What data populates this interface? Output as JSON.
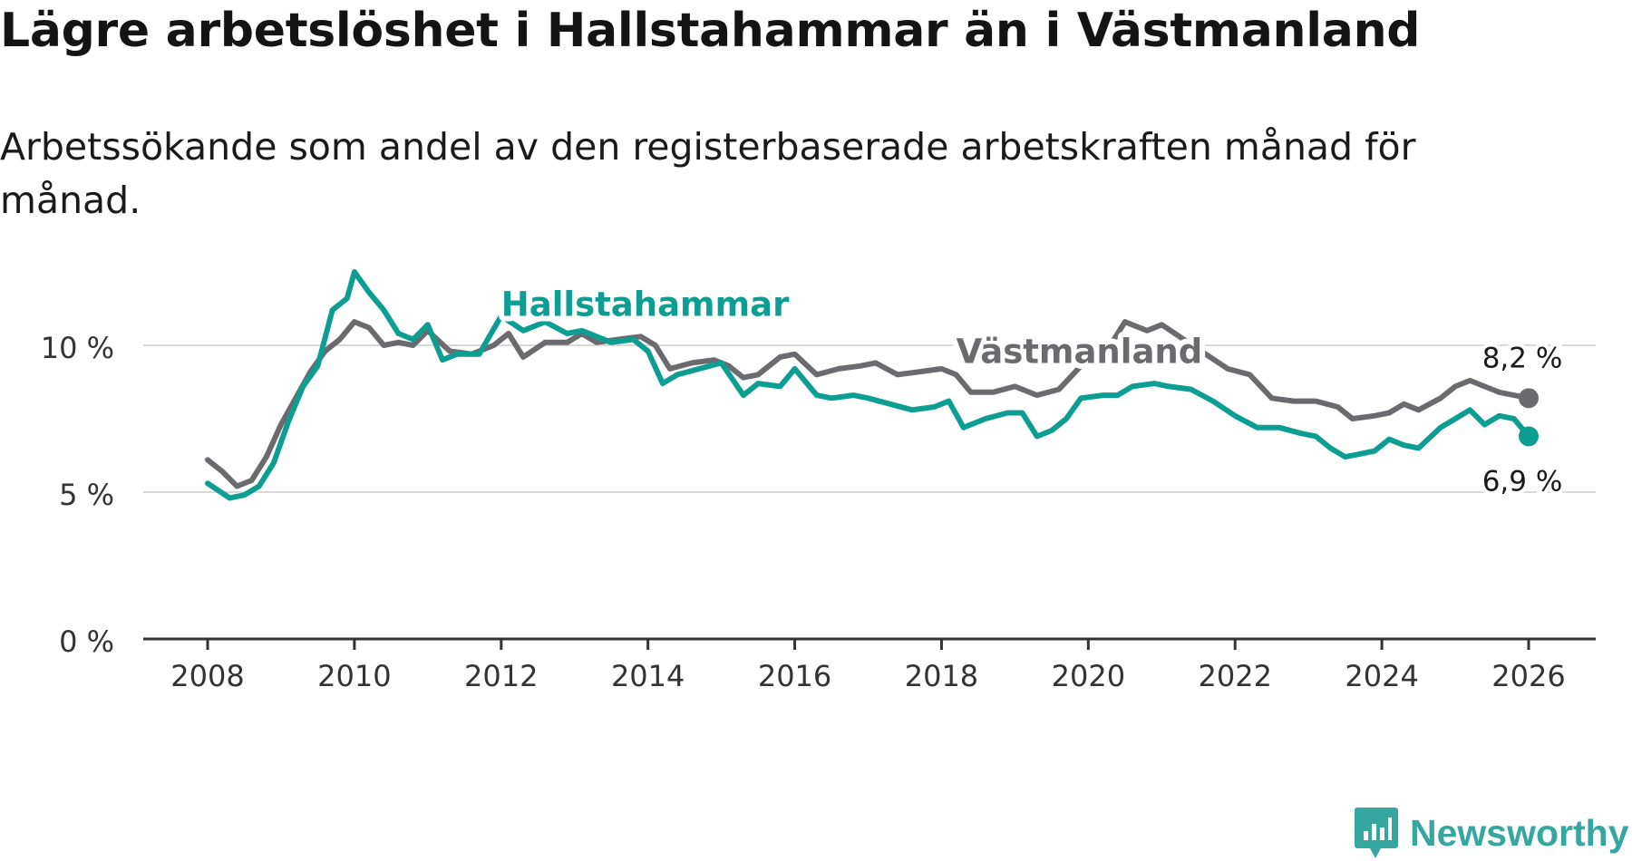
{
  "title": "Lägre arbetslöshet i Hallstahammar än i Västmanland",
  "subtitle": "Arbetssökande som andel av den registerbaserade arbetskraften månad för månad.",
  "brand": {
    "name": "Newsworthy",
    "icon": "newsworthy-logo-icon",
    "color": "#35a7a0"
  },
  "chart_data": {
    "type": "line",
    "title": "Lägre arbetslöshet i Hallstahammar än i Västmanland",
    "subtitle": "Arbetssökande som andel av den registerbaserade arbetskraften månad för månad.",
    "xlabel": "",
    "ylabel": "",
    "xlim": [
      2007.2,
      2026.9
    ],
    "ylim": [
      0,
      12.5
    ],
    "x_ticks": [
      2008,
      2010,
      2012,
      2014,
      2016,
      2018,
      2020,
      2022,
      2024,
      2026
    ],
    "x_tick_labels": [
      "2008",
      "2010",
      "2012",
      "2014",
      "2016",
      "2018",
      "2020",
      "2022",
      "2024",
      "2026"
    ],
    "y_ticks": [
      0,
      5,
      10
    ],
    "y_tick_labels": [
      "0 %",
      "5 %",
      "10 %"
    ],
    "grid": "horizontal",
    "series": [
      {
        "name": "Hallstahammar",
        "color": "#0d9e93",
        "end_label": "6,9 %",
        "x": [
          2008.0,
          2008.3,
          2008.5,
          2008.7,
          2008.9,
          2009.1,
          2009.3,
          2009.5,
          2009.7,
          2009.9,
          2010.0,
          2010.2,
          2010.4,
          2010.6,
          2010.8,
          2011.0,
          2011.2,
          2011.4,
          2011.7,
          2012.0,
          2012.3,
          2012.6,
          2012.9,
          2013.1,
          2013.3,
          2013.5,
          2013.8,
          2014.0,
          2014.2,
          2014.4,
          2014.7,
          2015.0,
          2015.3,
          2015.5,
          2015.8,
          2016.0,
          2016.3,
          2016.5,
          2016.8,
          2017.0,
          2017.3,
          2017.6,
          2017.9,
          2018.1,
          2018.3,
          2018.6,
          2018.9,
          2019.1,
          2019.3,
          2019.5,
          2019.7,
          2019.9,
          2020.2,
          2020.4,
          2020.6,
          2020.9,
          2021.1,
          2021.4,
          2021.7,
          2022.0,
          2022.3,
          2022.6,
          2022.9,
          2023.1,
          2023.3,
          2023.5,
          2023.7,
          2023.9,
          2024.1,
          2024.3,
          2024.5,
          2024.8,
          2025.0,
          2025.2,
          2025.4,
          2025.6,
          2025.8,
          2026.0
        ],
        "values": [
          5.3,
          4.8,
          4.9,
          5.2,
          6.0,
          7.4,
          8.6,
          9.3,
          11.2,
          11.6,
          12.5,
          11.8,
          11.2,
          10.4,
          10.2,
          10.7,
          9.5,
          9.7,
          9.7,
          11.0,
          10.5,
          10.8,
          10.4,
          10.5,
          10.3,
          10.1,
          10.2,
          9.8,
          8.7,
          9.0,
          9.2,
          9.4,
          8.3,
          8.7,
          8.6,
          9.2,
          8.3,
          8.2,
          8.3,
          8.2,
          8.0,
          7.8,
          7.9,
          8.1,
          7.2,
          7.5,
          7.7,
          7.7,
          6.9,
          7.1,
          7.5,
          8.2,
          8.3,
          8.3,
          8.6,
          8.7,
          8.6,
          8.5,
          8.1,
          7.6,
          7.2,
          7.2,
          7.0,
          6.9,
          6.5,
          6.2,
          6.3,
          6.4,
          6.8,
          6.6,
          6.5,
          7.2,
          7.5,
          7.8,
          7.3,
          7.6,
          7.5,
          6.9
        ]
      },
      {
        "name": "Västmanland",
        "color": "#6b6a6f",
        "end_label": "8,2 %",
        "x": [
          2008.0,
          2008.2,
          2008.4,
          2008.6,
          2008.8,
          2009.0,
          2009.2,
          2009.4,
          2009.6,
          2009.8,
          2010.0,
          2010.2,
          2010.4,
          2010.6,
          2010.8,
          2011.0,
          2011.3,
          2011.6,
          2011.9,
          2012.1,
          2012.3,
          2012.6,
          2012.9,
          2013.1,
          2013.3,
          2013.6,
          2013.9,
          2014.1,
          2014.3,
          2014.6,
          2014.9,
          2015.1,
          2015.3,
          2015.5,
          2015.8,
          2016.0,
          2016.3,
          2016.6,
          2016.9,
          2017.1,
          2017.4,
          2017.7,
          2018.0,
          2018.2,
          2018.4,
          2018.7,
          2019.0,
          2019.3,
          2019.6,
          2019.9,
          2020.1,
          2020.3,
          2020.5,
          2020.8,
          2021.0,
          2021.3,
          2021.6,
          2021.9,
          2022.2,
          2022.5,
          2022.8,
          2023.1,
          2023.4,
          2023.6,
          2023.9,
          2024.1,
          2024.3,
          2024.5,
          2024.8,
          2025.0,
          2025.2,
          2025.4,
          2025.6,
          2025.8,
          2026.0
        ],
        "values": [
          6.1,
          5.7,
          5.2,
          5.4,
          6.2,
          7.3,
          8.2,
          9.1,
          9.8,
          10.2,
          10.8,
          10.6,
          10.0,
          10.1,
          10.0,
          10.5,
          9.8,
          9.7,
          10.0,
          10.4,
          9.6,
          10.1,
          10.1,
          10.4,
          10.1,
          10.2,
          10.3,
          10.0,
          9.2,
          9.4,
          9.5,
          9.3,
          8.9,
          9.0,
          9.6,
          9.7,
          9.0,
          9.2,
          9.3,
          9.4,
          9.0,
          9.1,
          9.2,
          9.0,
          8.4,
          8.4,
          8.6,
          8.3,
          8.5,
          9.3,
          9.5,
          10.0,
          10.8,
          10.5,
          10.7,
          10.2,
          9.7,
          9.2,
          9.0,
          8.2,
          8.1,
          8.1,
          7.9,
          7.5,
          7.6,
          7.7,
          8.0,
          7.8,
          8.2,
          8.6,
          8.8,
          8.6,
          8.4,
          8.3,
          8.2
        ]
      }
    ],
    "annotations": [
      {
        "text": "Hallstahammar",
        "series": "Hallstahammar",
        "x": 2012.0,
        "y": 11.0
      },
      {
        "text": "Västmanland",
        "series": "Västmanland",
        "x": 2018.2,
        "y": 9.4
      }
    ]
  }
}
